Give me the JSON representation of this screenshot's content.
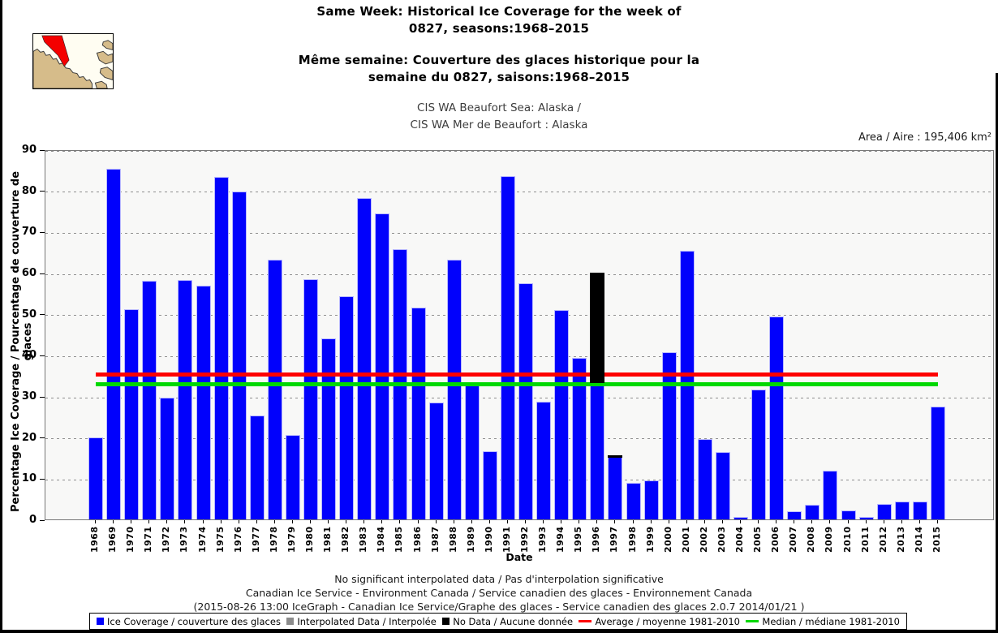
{
  "header": {
    "title_en": [
      "Same Week: Historical Ice Coverage for the week of",
      "0827, seasons:1968–2015"
    ],
    "title_fr": [
      "Même semaine: Couverture des glaces historique pour la",
      "semaine du 0827, saisons:1968–2015"
    ],
    "subtitle": [
      "CIS WA Beaufort Sea: Alaska /",
      "CIS WA Mer de Beaufort : Alaska"
    ],
    "area_label": "Area / Aire : 195,406 km²"
  },
  "map_inset": {
    "region_name": "beaufort-sea-region",
    "land_color": "#d6bc8a",
    "water_color": "#fffdf2",
    "highlight_color": "#f40000",
    "outline_color": "#3a3a3a"
  },
  "chart_data": {
    "type": "bar",
    "stacked": true,
    "title": "Same Week: Historical Ice Coverage for the week of 0827, seasons:1968–2015",
    "xlabel": "Date",
    "ylabel": "Percentage Ice Coverage / Pourcentage de couverture de glaces",
    "ylim": [
      0,
      90
    ],
    "yticks": [
      0,
      10,
      20,
      30,
      40,
      50,
      60,
      70,
      80,
      90
    ],
    "grid": "horizontal-dashed",
    "legend_position": "bottom",
    "categories": [
      "1968",
      "1969",
      "1970",
      "1971",
      "1972",
      "1973",
      "1974",
      "1975",
      "1976",
      "1977",
      "1978",
      "1979",
      "1980",
      "1981",
      "1982",
      "1983",
      "1984",
      "1985",
      "1986",
      "1987",
      "1988",
      "1989",
      "1990",
      "1991",
      "1992",
      "1993",
      "1994",
      "1995",
      "1996",
      "1997",
      "1998",
      "1999",
      "2000",
      "2001",
      "2002",
      "2003",
      "2004",
      "2005",
      "2006",
      "2007",
      "2008",
      "2009",
      "2010",
      "2011",
      "2012",
      "2013",
      "2014",
      "2015"
    ],
    "series": [
      {
        "name": "Ice Coverage / couverture des glaces",
        "color": "#0101fc",
        "values": [
          20.0,
          85.3,
          51.2,
          58.0,
          29.7,
          58.3,
          56.8,
          83.2,
          79.7,
          25.2,
          63.1,
          20.5,
          58.5,
          44.0,
          54.3,
          78.2,
          74.5,
          65.7,
          51.5,
          28.5,
          63.2,
          33.0,
          16.6,
          83.4,
          57.4,
          28.7,
          51.0,
          39.3,
          33.5,
          15.3,
          8.8,
          9.4,
          40.7,
          65.3,
          19.5,
          16.3,
          0.5,
          31.6,
          49.3,
          2.0,
          3.6,
          11.8,
          2.1,
          0.5,
          3.8,
          4.3,
          4.3,
          27.5
        ]
      },
      {
        "name": "No Data / Aucune donnée",
        "color": "#000000",
        "values": [
          0,
          0,
          0,
          0,
          0,
          0,
          0,
          0,
          0,
          0,
          0,
          0,
          0,
          0,
          0,
          0,
          0,
          0,
          0,
          0,
          0,
          0,
          0,
          0,
          0,
          0,
          0,
          0,
          26.9,
          0.6,
          0,
          0,
          0,
          0,
          0,
          0,
          0,
          0,
          0,
          0,
          0,
          0,
          0,
          0,
          0,
          0,
          0,
          0
        ]
      }
    ],
    "reference_lines": [
      {
        "name": "Average / moyenne 1981-2010",
        "value": 35.7,
        "color": "#fe0000"
      },
      {
        "name": "Median / médiane 1981-2010",
        "value": 33.3,
        "color": "#00d800"
      }
    ]
  },
  "footer": {
    "lines": [
      "No significant interpolated data / Pas d'interpolation significative",
      "Canadian Ice Service - Environment Canada / Service canadien des glaces - Environnement Canada",
      "(2015-08-26 13:00 IceGraph - Canadian Ice Service/Graphe des glaces - Service canadien des glaces 2.0.7 2014/01/21 )"
    ]
  },
  "legend": {
    "items": [
      {
        "swatch": "square",
        "color": "#0101fc",
        "label": "Ice Coverage / couverture des glaces"
      },
      {
        "swatch": "square",
        "color": "#8c8c8c",
        "label": "Interpolated Data / Interpolée"
      },
      {
        "swatch": "square",
        "color": "#000000",
        "label": "No Data / Aucune donnée"
      },
      {
        "swatch": "line",
        "color": "#fe0000",
        "label": "Average / moyenne 1981-2010"
      },
      {
        "swatch": "line",
        "color": "#00d800",
        "label": "Median / médiane 1981-2010"
      }
    ]
  }
}
